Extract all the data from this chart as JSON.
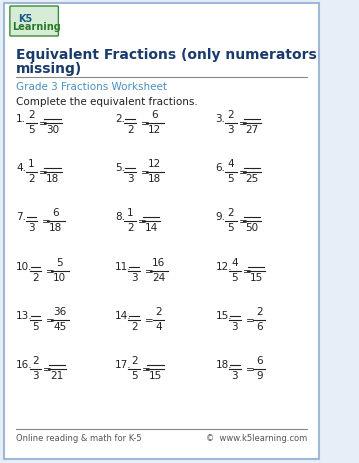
{
  "title_line1": "Equivalent Fractions (only numerators",
  "title_line2": "missing)",
  "subtitle": "Grade 3 Fractions Worksheet",
  "instruction": "Complete the equivalent fractions.",
  "bg_color": "#e8eef7",
  "border_color": "#a0b8d8",
  "title_color": "#1a3a6b",
  "subtitle_color": "#4a90c4",
  "text_color": "#222222",
  "footer_left": "Online reading & math for K-5",
  "footer_right": "©  www.k5learning.com",
  "problems": [
    {
      "num": "1.",
      "n1": "2",
      "d1": "5",
      "n2": "_",
      "d2": "30"
    },
    {
      "num": "2.",
      "n1": "_",
      "d1": "2",
      "n2": "6",
      "d2": "12"
    },
    {
      "num": "3.",
      "n1": "2",
      "d1": "3",
      "n2": "_",
      "d2": "27"
    },
    {
      "num": "4.",
      "n1": "1",
      "d1": "2",
      "n2": "_",
      "d2": "18"
    },
    {
      "num": "5.",
      "n1": "_",
      "d1": "3",
      "n2": "12",
      "d2": "18"
    },
    {
      "num": "6.",
      "n1": "4",
      "d1": "5",
      "n2": "_",
      "d2": "25"
    },
    {
      "num": "7.",
      "n1": "_",
      "d1": "3",
      "n2": "6",
      "d2": "18"
    },
    {
      "num": "8.",
      "n1": "1",
      "d1": "2",
      "n2": "_",
      "d2": "14"
    },
    {
      "num": "9.",
      "n1": "2",
      "d1": "5",
      "n2": "_",
      "d2": "50"
    },
    {
      "num": "10.",
      "n1": "_",
      "d1": "2",
      "n2": "5",
      "d2": "10"
    },
    {
      "num": "11.",
      "n1": "_",
      "d1": "3",
      "n2": "16",
      "d2": "24"
    },
    {
      "num": "12.",
      "n1": "4",
      "d1": "5",
      "n2": "_",
      "d2": "15"
    },
    {
      "num": "13.",
      "n1": "_",
      "d1": "5",
      "n2": "36",
      "d2": "45"
    },
    {
      "num": "14.",
      "n1": "_",
      "d1": "2",
      "n2": "2",
      "d2": "4"
    },
    {
      "num": "15.",
      "n1": "_",
      "d1": "3",
      "n2": "2",
      "d2": "6"
    },
    {
      "num": "16.",
      "n1": "2",
      "d1": "3",
      "n2": "_",
      "d2": "21"
    },
    {
      "num": "17.",
      "n1": "2",
      "d1": "5",
      "n2": "_",
      "d2": "15"
    },
    {
      "num": "18.",
      "n1": "_",
      "d1": "3",
      "n2": "6",
      "d2": "9"
    }
  ]
}
